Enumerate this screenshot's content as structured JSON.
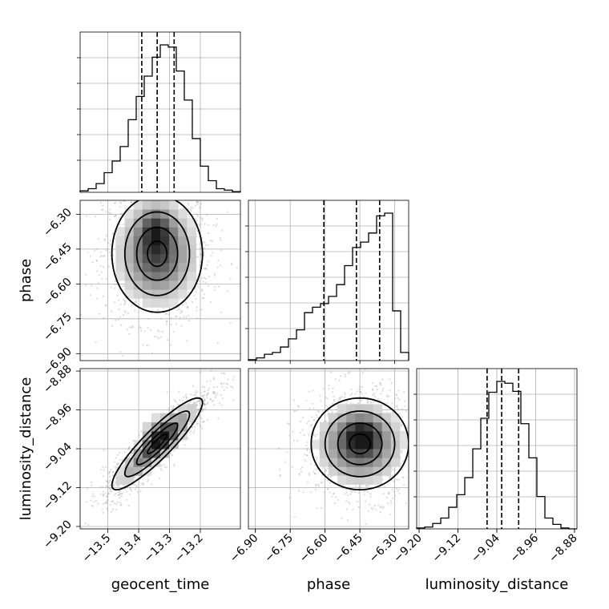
{
  "chart_data": {
    "type": "corner",
    "parameters": [
      "geocent_time",
      "phase",
      "luminosity_distance"
    ],
    "axis_labels": {
      "geocent_time": "geocent_time",
      "phase": "phase",
      "luminosity_distance": "luminosity_distance"
    },
    "ranges": {
      "geocent_time": [
        -13.59,
        -13.07
      ],
      "phase": [
        -6.93,
        -6.24
      ],
      "luminosity_distance": [
        -9.205,
        -8.875
      ]
    },
    "ticks": {
      "geocent_time": [
        -13.5,
        -13.4,
        -13.3,
        -13.2
      ],
      "phase": [
        -6.9,
        -6.75,
        -6.6,
        -6.45,
        -6.3
      ],
      "luminosity_distance": [
        -9.2,
        -9.12,
        -9.04,
        -8.96,
        -8.88
      ]
    },
    "tick_labels": {
      "geocent_time": [
        "−13.5",
        "−13.4",
        "−13.3",
        "−13.2"
      ],
      "phase": [
        "−6.90",
        "−6.75",
        "−6.60",
        "−6.45",
        "−6.30"
      ],
      "luminosity_distance": [
        "−9.20",
        "−9.12",
        "−9.04",
        "−8.96",
        "−8.88"
      ]
    },
    "quantiles": {
      "geocent_time": [
        -13.39,
        -13.34,
        -13.285
      ],
      "phase": [
        -6.605,
        -6.465,
        -6.365
      ],
      "luminosity_distance": [
        -9.06,
        -9.03,
        -8.995
      ]
    },
    "histograms": {
      "geocent_time": [
        2,
        5,
        12,
        27,
        43,
        63,
        100,
        132,
        160,
        186,
        203,
        200,
        167,
        127,
        74,
        36,
        16,
        5,
        3,
        1
      ],
      "phase": [
        1,
        3,
        7,
        9,
        15,
        24,
        34,
        53,
        59,
        63,
        71,
        84,
        105,
        125,
        131,
        141,
        160,
        163,
        55,
        9
      ],
      "luminosity_distance": [
        1,
        2,
        6,
        12,
        24,
        38,
        57,
        89,
        123,
        152,
        164,
        162,
        153,
        117,
        79,
        36,
        12,
        5,
        1,
        0
      ]
    },
    "joint": [
      {
        "x": "geocent_time",
        "y": "phase",
        "mean": [
          -13.34,
          -6.47
        ],
        "sd": [
          0.07,
          0.12
        ],
        "rho": 0.0,
        "peak": [
          -13.345,
          -6.36
        ],
        "contour_levels": 4,
        "grid": "on"
      },
      {
        "x": "geocent_time",
        "y": "luminosity_distance",
        "mean": [
          -13.34,
          -9.03
        ],
        "sd": [
          0.07,
          0.045
        ],
        "rho": 0.9,
        "peak": [
          -13.33,
          -9.01
        ],
        "contour_levels": 4,
        "grid": "on"
      },
      {
        "x": "phase",
        "y": "luminosity_distance",
        "mean": [
          -6.45,
          -9.03
        ],
        "sd": [
          0.1,
          0.045
        ],
        "rho": 0.0,
        "peak": [
          -6.44,
          -9.01
        ],
        "contour_levels": 4,
        "grid": "on"
      }
    ]
  }
}
